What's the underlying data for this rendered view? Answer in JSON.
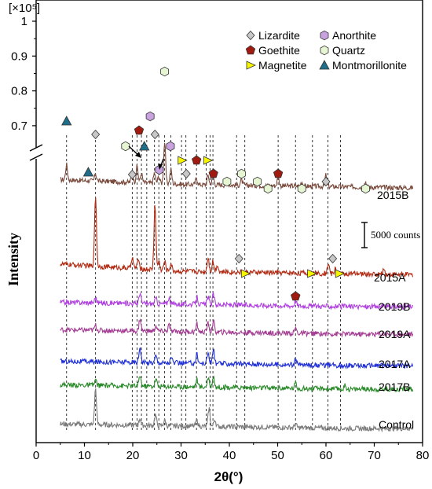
{
  "chart_data": {
    "type": "line",
    "ylabel": "Intensity",
    "xlabel": "2θ(°)",
    "xlim": [
      0,
      80
    ],
    "x_ticks": [
      "0",
      "10",
      "20",
      "30",
      "40",
      "50",
      "60",
      "70",
      "80"
    ],
    "y_multiplier": "[×10⁵]",
    "y_ticks": [
      "1",
      "0.9",
      "0.8",
      "0.7"
    ],
    "y_tick_values": [
      1.0,
      0.9,
      0.8,
      0.7
    ],
    "scale_bar_label": "5000 counts",
    "legend": [
      {
        "label": "Lizardite",
        "marker": "diamond",
        "color": "#c8c8c8"
      },
      {
        "label": "Anorthite",
        "marker": "hexagon",
        "color": "#c9a2e0"
      },
      {
        "label": "Goethite",
        "marker": "pentagon",
        "color": "#a01a10"
      },
      {
        "label": "Quartz",
        "marker": "hexagon",
        "color": "#e6f5d2"
      },
      {
        "label": "Magnetite",
        "marker": "triangle-right",
        "color": "#f5f500"
      },
      {
        "label": "Montmorillonite",
        "marker": "triangle-up",
        "color": "#1f6e8c"
      }
    ],
    "series": [
      {
        "name": "2015B",
        "color": "#7a4a3c",
        "peaks": [
          [
            6.3,
            4.2
          ],
          [
            12.3,
            2.0
          ],
          [
            19.9,
            2.2
          ],
          [
            20.9,
            4.5
          ],
          [
            21.8,
            2.6
          ],
          [
            24.5,
            2.8
          ],
          [
            25.4,
            2.0
          ],
          [
            26.6,
            11.5
          ],
          [
            27.9,
            4.0
          ],
          [
            33.2,
            1.8
          ],
          [
            35.6,
            2.6
          ],
          [
            36.6,
            2.8
          ],
          [
            39.5,
            1.5
          ],
          [
            42.5,
            1.5
          ],
          [
            50.1,
            2.5
          ],
          [
            55.0,
            1.2
          ],
          [
            60.0,
            3.2
          ],
          [
            68.2,
            1.5
          ]
        ]
      },
      {
        "name": "2015A",
        "color": "#b22a12",
        "peaks": [
          [
            12.3,
            19.5
          ],
          [
            19.9,
            3.2
          ],
          [
            21.1,
            2.5
          ],
          [
            24.6,
            18.0
          ],
          [
            25.4,
            2.5
          ],
          [
            26.6,
            2.5
          ],
          [
            27.9,
            2.0
          ],
          [
            35.6,
            4.0
          ],
          [
            36.6,
            3.0
          ],
          [
            37.5,
            2.0
          ],
          [
            60.5,
            3.0
          ],
          [
            62.0,
            1.5
          ],
          [
            72.0,
            1.5
          ]
        ]
      },
      {
        "name": "2019B",
        "color": "#b040e0",
        "peaks": [
          [
            12.3,
            1.5
          ],
          [
            21.5,
            3.0
          ],
          [
            24.8,
            1.5
          ],
          [
            27.5,
            1.8
          ],
          [
            33.3,
            2.0
          ],
          [
            35.6,
            2.2
          ],
          [
            36.7,
            2.8
          ],
          [
            53.7,
            1.5
          ]
        ]
      },
      {
        "name": "2019A",
        "color": "#a33c92",
        "peaks": [
          [
            12.3,
            1.4
          ],
          [
            21.5,
            3.5
          ],
          [
            24.8,
            1.5
          ],
          [
            27.5,
            1.8
          ],
          [
            33.3,
            2.0
          ],
          [
            35.6,
            2.5
          ],
          [
            36.7,
            3.0
          ],
          [
            53.7,
            1.5
          ]
        ]
      },
      {
        "name": "2017A",
        "color": "#2030d8",
        "peaks": [
          [
            21.5,
            4.5
          ],
          [
            24.8,
            2.0
          ],
          [
            28.0,
            1.5
          ],
          [
            33.3,
            2.5
          ],
          [
            35.6,
            3.0
          ],
          [
            36.7,
            4.0
          ],
          [
            53.7,
            1.5
          ]
        ]
      },
      {
        "name": "2017B",
        "color": "#2a8a2a",
        "peaks": [
          [
            12.3,
            1.5
          ],
          [
            21.5,
            3.0
          ],
          [
            24.8,
            2.0
          ],
          [
            33.3,
            2.0
          ],
          [
            35.6,
            2.5
          ],
          [
            36.7,
            3.0
          ],
          [
            53.7,
            1.5
          ],
          [
            64.0,
            1.0
          ]
        ]
      },
      {
        "name": "Control",
        "color": "#7a7a7a",
        "peaks": [
          [
            12.3,
            10.0
          ],
          [
            21.5,
            2.0
          ],
          [
            24.7,
            3.0
          ],
          [
            26.6,
            1.5
          ],
          [
            33.3,
            1.5
          ],
          [
            35.8,
            5.0
          ],
          [
            37.0,
            2.0
          ],
          [
            53.7,
            1.0
          ]
        ]
      }
    ],
    "reference_lines": [
      6.3,
      12.3,
      19.9,
      20.9,
      21.8,
      22.9,
      24.5,
      25.4,
      26.6,
      27.9,
      30.1,
      31.0,
      33.2,
      35.2,
      36.0,
      36.6,
      41.5,
      43.2,
      50.1,
      53.7,
      57.2,
      60.4,
      63.0
    ],
    "markers": [
      {
        "phase": "Montmorillonite",
        "x": 6.3,
        "level": "high"
      },
      {
        "phase": "Montmorillonite",
        "x": 10.8,
        "level": "low"
      },
      {
        "phase": "Lizardite",
        "x": 12.3,
        "level": "high"
      },
      {
        "phase": "Lizardite",
        "x": 19.9,
        "level": "low"
      },
      {
        "phase": "Quartz",
        "x": 18.5,
        "level": "mid"
      },
      {
        "phase": "Goethite",
        "x": 21.3,
        "level": "high"
      },
      {
        "phase": "Montmorillonite",
        "x": 22.4,
        "level": "mid"
      },
      {
        "phase": "Anorthite",
        "x": 23.6,
        "level": "top"
      },
      {
        "phase": "Lizardite",
        "x": 24.6,
        "level": "high"
      },
      {
        "phase": "Anorthite",
        "x": 25.5,
        "level": "low"
      },
      {
        "phase": "Quartz",
        "x": 26.6,
        "level": "peak"
      },
      {
        "phase": "Anorthite",
        "x": 27.8,
        "level": "mid"
      },
      {
        "phase": "Magnetite",
        "x": 30.2,
        "level": "low"
      },
      {
        "phase": "Lizardite",
        "x": 31.1,
        "level": "lower"
      },
      {
        "phase": "Goethite",
        "x": 33.2,
        "level": "low"
      },
      {
        "phase": "Magnetite",
        "x": 35.5,
        "level": "low"
      },
      {
        "phase": "Goethite",
        "x": 36.7,
        "level": "lower"
      },
      {
        "phase": "Quartz",
        "x": 39.5,
        "level": "lowest"
      },
      {
        "phase": "Quartz",
        "x": 42.5,
        "level": "lower"
      },
      {
        "phase": "Quartz",
        "x": 45.8,
        "level": "lowest"
      },
      {
        "phase": "Quartz",
        "x": 48.0,
        "level": "below"
      },
      {
        "phase": "Goethite",
        "x": 50.1,
        "level": "lower"
      },
      {
        "phase": "Quartz",
        "x": 55.0,
        "level": "below"
      },
      {
        "phase": "Lizardite",
        "x": 60.0,
        "level": "lowest"
      },
      {
        "phase": "Quartz",
        "x": 68.2,
        "level": "below"
      },
      {
        "phase": "Lizardite",
        "x": 42.0,
        "level": "a2"
      },
      {
        "phase": "Magnetite",
        "x": 43.3,
        "level": "a3"
      },
      {
        "phase": "Goethite",
        "x": 53.7,
        "level": "a4"
      },
      {
        "phase": "Magnetite",
        "x": 57.0,
        "level": "a3"
      },
      {
        "phase": "Lizardite",
        "x": 61.4,
        "level": "a2"
      },
      {
        "phase": "Magnetite",
        "x": 62.8,
        "level": "a3"
      }
    ]
  }
}
